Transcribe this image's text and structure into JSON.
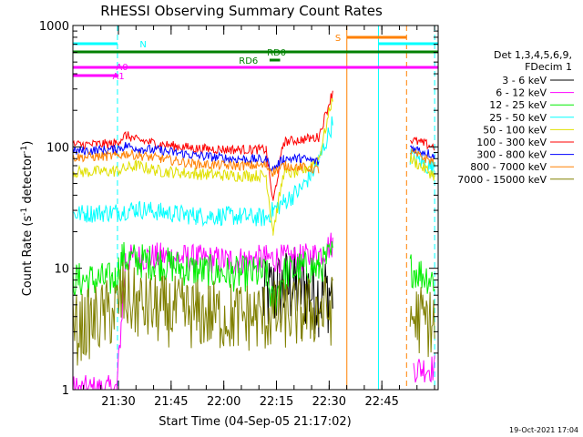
{
  "chart_data": {
    "type": "line",
    "title": "RHESSI Observing Summary Count Rates",
    "xlabel": "Start Time (04-Sep-05 21:17:02)",
    "ylabel_main": "Count Rate (s",
    "ylabel_sup1": "-1",
    "ylabel_mid": " detector",
    "ylabel_sup2": "-1",
    "ylabel_end": ")",
    "x_ticks": [
      "21:30",
      "21:45",
      "22:00",
      "22:15",
      "22:30",
      "22:45"
    ],
    "y_ticks": [
      "1",
      "10",
      "100",
      "1000"
    ],
    "ylim": [
      1,
      1000
    ],
    "xlim_minutes": [
      0,
      104
    ],
    "yscale": "log",
    "legend_header": [
      "Det 1,3,4,5,6,9,",
      "FDecim 1"
    ],
    "footer_date": "19-Oct-2021 17:04",
    "series": [
      {
        "name": "3 - 6 keV",
        "color": "#000000",
        "points": [
          [
            54,
            5.5
          ],
          [
            58,
            6.5
          ],
          [
            62,
            7
          ],
          [
            66,
            6.8
          ],
          [
            70,
            6
          ],
          [
            74,
            6.5
          ]
        ]
      },
      {
        "name": "6 - 12 keV",
        "color": "#ff00ff",
        "points": [
          [
            0,
            1
          ],
          [
            12.5,
            1
          ],
          [
            15,
            12
          ],
          [
            25,
            12.5
          ],
          [
            35,
            12
          ],
          [
            45,
            11.5
          ],
          [
            55,
            12
          ],
          [
            65,
            12
          ],
          [
            70,
            13
          ],
          [
            74,
            16
          ],
          [
            97,
            1.5
          ],
          [
            103,
            1.5
          ]
        ]
      },
      {
        "name": "12 - 25 keV",
        "color": "#00ee00",
        "points": [
          [
            0,
            8
          ],
          [
            12,
            8
          ],
          [
            14,
            12
          ],
          [
            25,
            11
          ],
          [
            35,
            9.5
          ],
          [
            45,
            9
          ],
          [
            55,
            9
          ],
          [
            57,
            5
          ],
          [
            60,
            9
          ],
          [
            65,
            10
          ],
          [
            70,
            10
          ],
          [
            74,
            13
          ],
          [
            96,
            10
          ],
          [
            103,
            8
          ]
        ]
      },
      {
        "name": "25 - 50 keV",
        "color": "#00ffff",
        "points": [
          [
            0,
            28
          ],
          [
            12,
            29
          ],
          [
            18,
            31
          ],
          [
            25,
            29
          ],
          [
            35,
            27
          ],
          [
            45,
            27
          ],
          [
            55,
            26
          ],
          [
            57,
            30
          ],
          [
            60,
            35
          ],
          [
            65,
            45
          ],
          [
            70,
            75
          ],
          [
            74,
            160
          ],
          [
            96,
            85
          ],
          [
            103,
            65
          ]
        ]
      },
      {
        "name": "50 - 100 keV",
        "color": "#e0e000",
        "points": [
          [
            0,
            62
          ],
          [
            12,
            63
          ],
          [
            18,
            70
          ],
          [
            25,
            63
          ],
          [
            35,
            60
          ],
          [
            45,
            58
          ],
          [
            55,
            58
          ],
          [
            57,
            20
          ],
          [
            60,
            60
          ],
          [
            65,
            62
          ],
          [
            70,
            80
          ],
          [
            74,
            260
          ],
          [
            96,
            80
          ],
          [
            103,
            58
          ]
        ]
      },
      {
        "name": "100 - 300 keV",
        "color": "#ff0000",
        "points": [
          [
            0,
            104
          ],
          [
            12,
            106
          ],
          [
            15,
            125
          ],
          [
            18,
            115
          ],
          [
            25,
            105
          ],
          [
            35,
            97
          ],
          [
            45,
            95
          ],
          [
            55,
            95
          ],
          [
            57,
            35
          ],
          [
            60,
            110
          ],
          [
            65,
            115
          ],
          [
            70,
            120
          ],
          [
            74,
            290
          ],
          [
            96,
            115
          ],
          [
            103,
            100
          ]
        ]
      },
      {
        "name": "300 - 800 keV",
        "color": "#0000ff",
        "points": [
          [
            0,
            92
          ],
          [
            12,
            95
          ],
          [
            15,
            102
          ],
          [
            20,
            96
          ],
          [
            25,
            93
          ],
          [
            35,
            85
          ],
          [
            45,
            80
          ],
          [
            55,
            78
          ],
          [
            57,
            65
          ],
          [
            60,
            80
          ],
          [
            65,
            80
          ],
          [
            70,
            75
          ],
          [
            96,
            100
          ],
          [
            103,
            85
          ]
        ]
      },
      {
        "name": "800 - 7000 keV",
        "color": "#ff8000",
        "points": [
          [
            0,
            82
          ],
          [
            12,
            84
          ],
          [
            15,
            88
          ],
          [
            20,
            84
          ],
          [
            25,
            80
          ],
          [
            35,
            72
          ],
          [
            45,
            70
          ],
          [
            55,
            70
          ],
          [
            57,
            62
          ],
          [
            60,
            70
          ],
          [
            65,
            68
          ],
          [
            70,
            65
          ],
          [
            96,
            90
          ],
          [
            103,
            75
          ]
        ]
      },
      {
        "name": "7000 - 15000 keV",
        "color": "#808000",
        "points": [
          [
            0,
            3
          ],
          [
            12,
            4.5
          ],
          [
            14,
            6
          ],
          [
            18,
            5
          ],
          [
            25,
            4.5
          ],
          [
            35,
            4.2
          ],
          [
            45,
            4
          ],
          [
            55,
            4
          ],
          [
            60,
            4.2
          ],
          [
            65,
            4.3
          ],
          [
            70,
            4.5
          ],
          [
            74,
            4.5
          ],
          [
            96,
            4
          ],
          [
            103,
            3.5
          ]
        ]
      }
    ],
    "flags": [
      {
        "label": "N",
        "color": "#00ffff"
      },
      {
        "label": "RD0",
        "color": "#008000"
      },
      {
        "label": "RD6",
        "color": "#008000"
      },
      {
        "label": "A0",
        "color": "#ff00ff"
      },
      {
        "label": "A1",
        "color": "#ff00ff"
      },
      {
        "label": "S",
        "color": "#ff8000"
      }
    ]
  }
}
